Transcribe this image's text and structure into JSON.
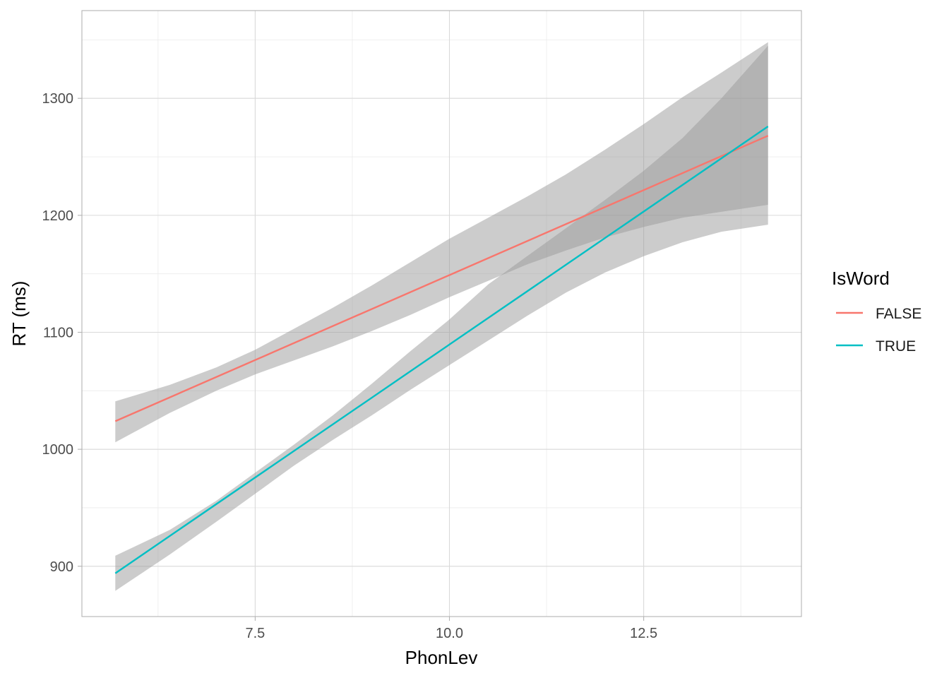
{
  "chart_data": {
    "type": "line",
    "xlabel": "PhonLev",
    "ylabel": "RT (ms)",
    "xlim": [
      5.27,
      14.53
    ],
    "ylim": [
      857,
      1375
    ],
    "x_ticks": [
      7.5,
      10.0,
      12.5
    ],
    "x_tick_labels": [
      "7.5",
      "10.0",
      "12.5"
    ],
    "x_minor_ticks": [
      6.25,
      8.75,
      11.25,
      13.75
    ],
    "y_ticks": [
      900,
      1000,
      1100,
      1200,
      1300
    ],
    "y_tick_labels": [
      "900",
      "1000",
      "1100",
      "1200",
      "1300"
    ],
    "y_minor_ticks": [
      950,
      1050,
      1150,
      1250,
      1350
    ],
    "grid": true,
    "legend": {
      "title": "IsWord",
      "position": "right"
    },
    "series": [
      {
        "name": "FALSE",
        "color": "#F8766D",
        "x": [
          5.7,
          14.1
        ],
        "y": [
          1024,
          1268
        ],
        "band": {
          "x": [
            5.7,
            6.4,
            7.0,
            7.5,
            8.0,
            8.5,
            9.0,
            9.5,
            10.0,
            10.5,
            11.0,
            11.5,
            12.0,
            12.5,
            13.0,
            13.5,
            14.1
          ],
          "lower": [
            1006,
            1031,
            1050,
            1064,
            1076,
            1088,
            1101,
            1115,
            1130,
            1144,
            1158,
            1170,
            1181,
            1190,
            1198,
            1203,
            1209
          ],
          "upper": [
            1041,
            1055,
            1070,
            1085,
            1103,
            1121,
            1140,
            1160,
            1180,
            1198,
            1216,
            1235,
            1256,
            1278,
            1301,
            1322,
            1348
          ]
        }
      },
      {
        "name": "TRUE",
        "color": "#00BFC4",
        "x": [
          5.7,
          14.1
        ],
        "y": [
          894,
          1276
        ],
        "band": {
          "x": [
            5.7,
            6.4,
            7.0,
            7.5,
            8.0,
            8.5,
            9.0,
            9.5,
            10.0,
            10.5,
            11.0,
            11.5,
            12.0,
            12.5,
            13.0,
            13.5,
            14.1
          ],
          "lower": [
            879,
            910,
            938,
            962,
            986,
            1008,
            1029,
            1051,
            1072,
            1093,
            1114,
            1134,
            1151,
            1165,
            1177,
            1186,
            1192
          ],
          "upper": [
            909,
            931,
            956,
            980,
            1004,
            1029,
            1056,
            1084,
            1111,
            1141,
            1165,
            1189,
            1213,
            1238,
            1266,
            1300,
            1345
          ]
        }
      }
    ]
  }
}
